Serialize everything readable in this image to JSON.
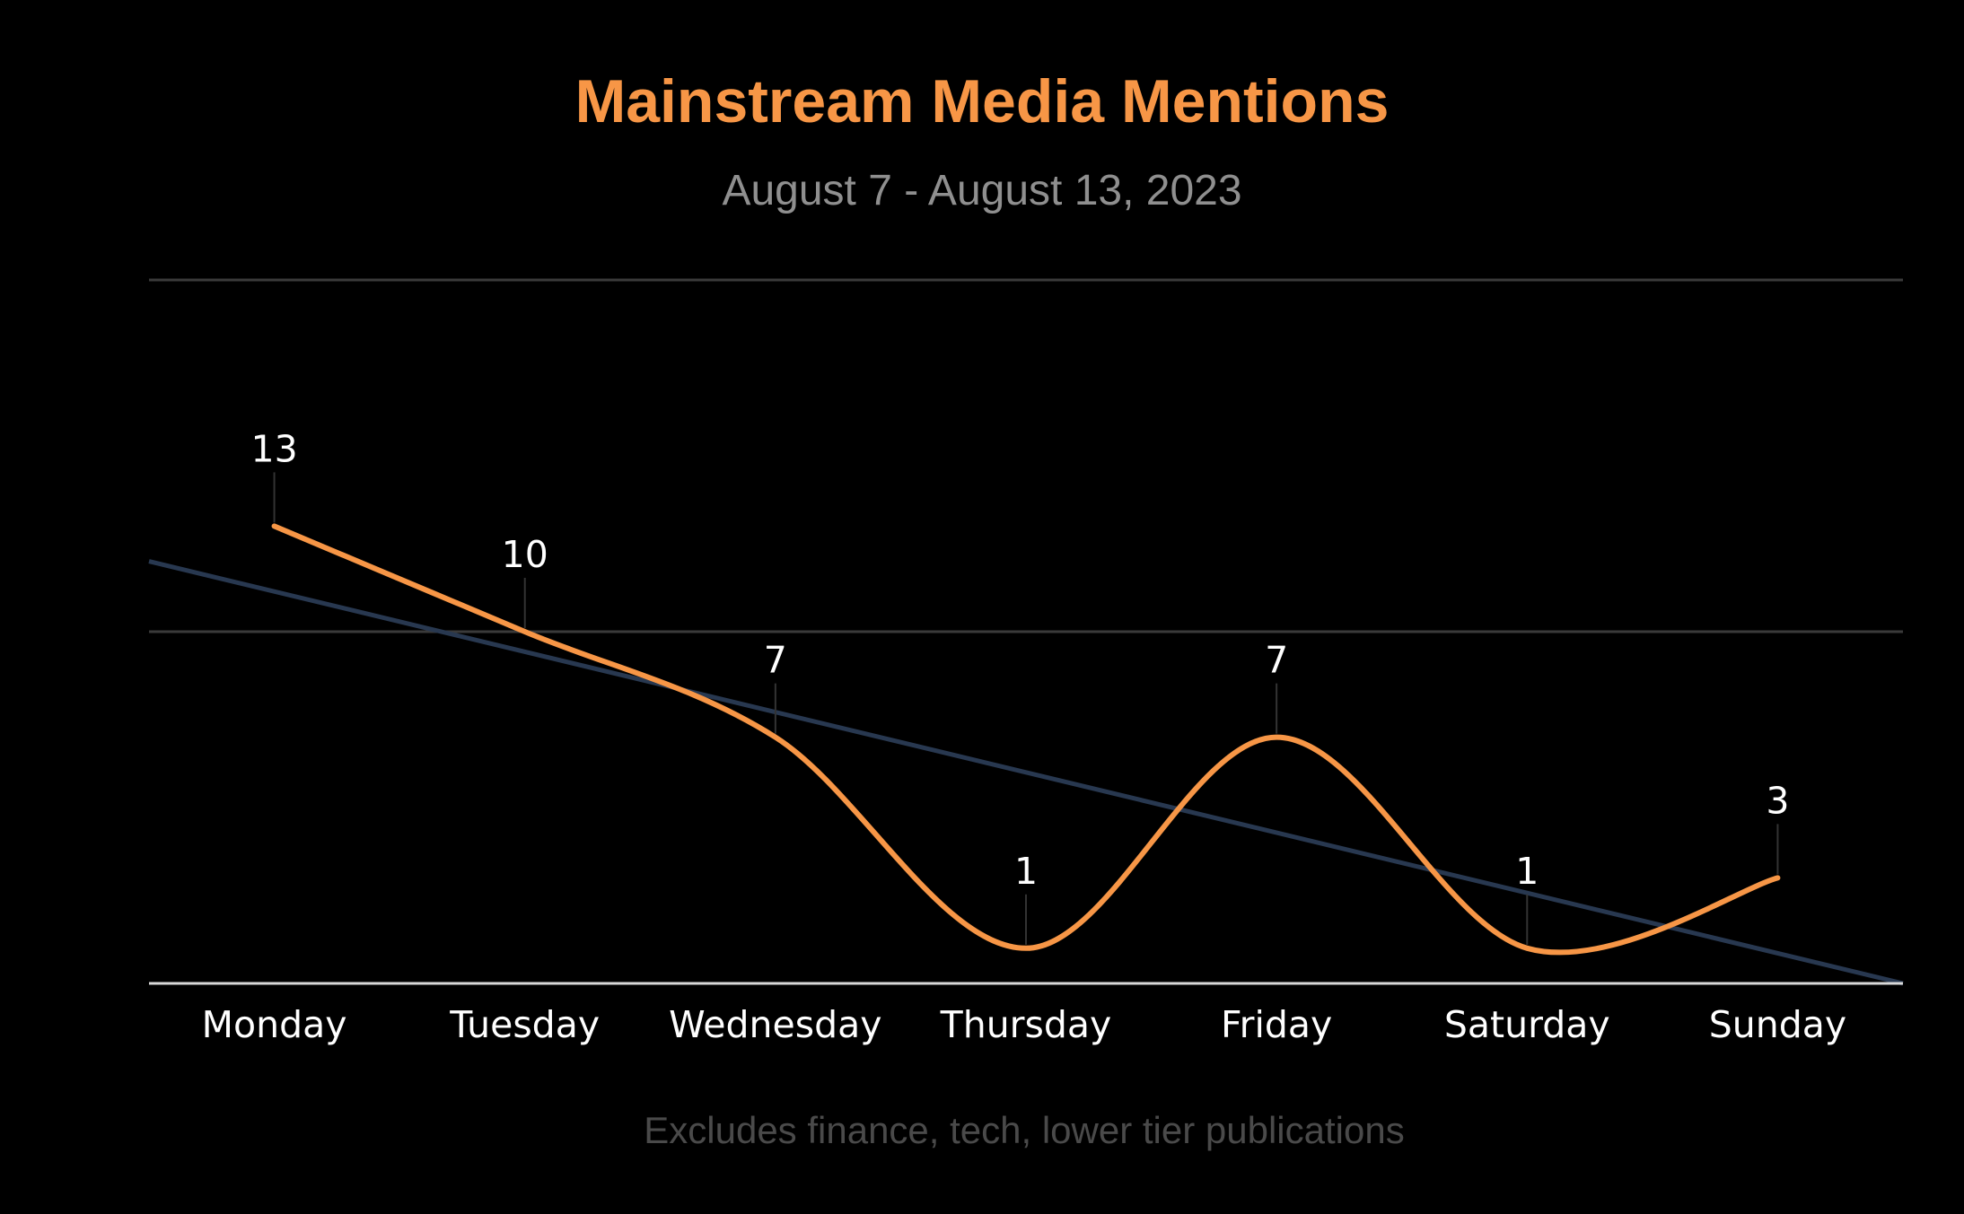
{
  "chart_data": {
    "type": "line",
    "title": "Mainstream Media Mentions",
    "subtitle": "August 7 - August 13, 2023",
    "footnote": "Excludes finance, tech, lower tier publications",
    "categories": [
      "Monday",
      "Tuesday",
      "Wednesday",
      "Thursday",
      "Friday",
      "Saturday",
      "Sunday"
    ],
    "series": [
      {
        "values": [
          13,
          10,
          7,
          1,
          7,
          1,
          3
        ],
        "color": "#f79646",
        "smooth": true,
        "data_labels": [
          "13",
          "10",
          "7",
          "1",
          "7",
          "1",
          "3"
        ]
      }
    ],
    "trendline": {
      "type": "linear",
      "color": "#283850"
    },
    "ylim": [
      0,
      20
    ],
    "y_gridlines": [
      10,
      20
    ],
    "y_tick_labels_shown": false,
    "grid": true,
    "legend": "none",
    "colors": {
      "background": "#000000",
      "title": "#f79646",
      "subtitle": "#8f8f8f",
      "footnote": "#4a4a4a",
      "gridline": "#3a3a3a",
      "axis": "#d9d9d9",
      "labels": "#ffffff",
      "leader": "#333333"
    }
  }
}
